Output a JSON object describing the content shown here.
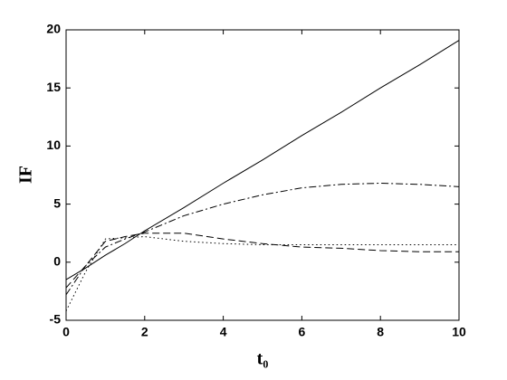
{
  "chart_data": {
    "type": "line",
    "xlabel": "t₀",
    "ylabel": "IF",
    "x": [
      0,
      0.5,
      1,
      1.5,
      2,
      3,
      4,
      5,
      6,
      7,
      8,
      9,
      10
    ],
    "series": [
      {
        "color": "#000000",
        "dash": "solid",
        "values": [
          -1.5,
          -0.5,
          0.6,
          1.6,
          2.7,
          4.7,
          6.8,
          8.8,
          10.9,
          12.9,
          15.0,
          17.0,
          19.1
        ]
      },
      {
        "color": "#000000",
        "dash": "dashdot",
        "values": [
          -2.8,
          -0.3,
          1.3,
          2.0,
          2.6,
          4.0,
          5.0,
          5.8,
          6.4,
          6.7,
          6.8,
          6.7,
          6.5
        ]
      },
      {
        "color": "#000000",
        "dash": "dashed",
        "values": [
          -2.2,
          -0.3,
          1.8,
          2.2,
          2.5,
          2.5,
          2.0,
          1.6,
          1.3,
          1.2,
          1.0,
          0.9,
          0.9
        ]
      },
      {
        "color": "#000000",
        "dash": "dotted",
        "values": [
          -4.2,
          -0.8,
          2.0,
          2.1,
          2.2,
          1.8,
          1.6,
          1.5,
          1.5,
          1.5,
          1.5,
          1.5,
          1.5
        ]
      }
    ],
    "xlim": [
      0,
      10
    ],
    "xticks": [
      0,
      2,
      4,
      6,
      8,
      10
    ],
    "ylim": [
      -5,
      20
    ],
    "yticks": [
      -5,
      0,
      5,
      10,
      15,
      20
    ],
    "grid": false
  }
}
